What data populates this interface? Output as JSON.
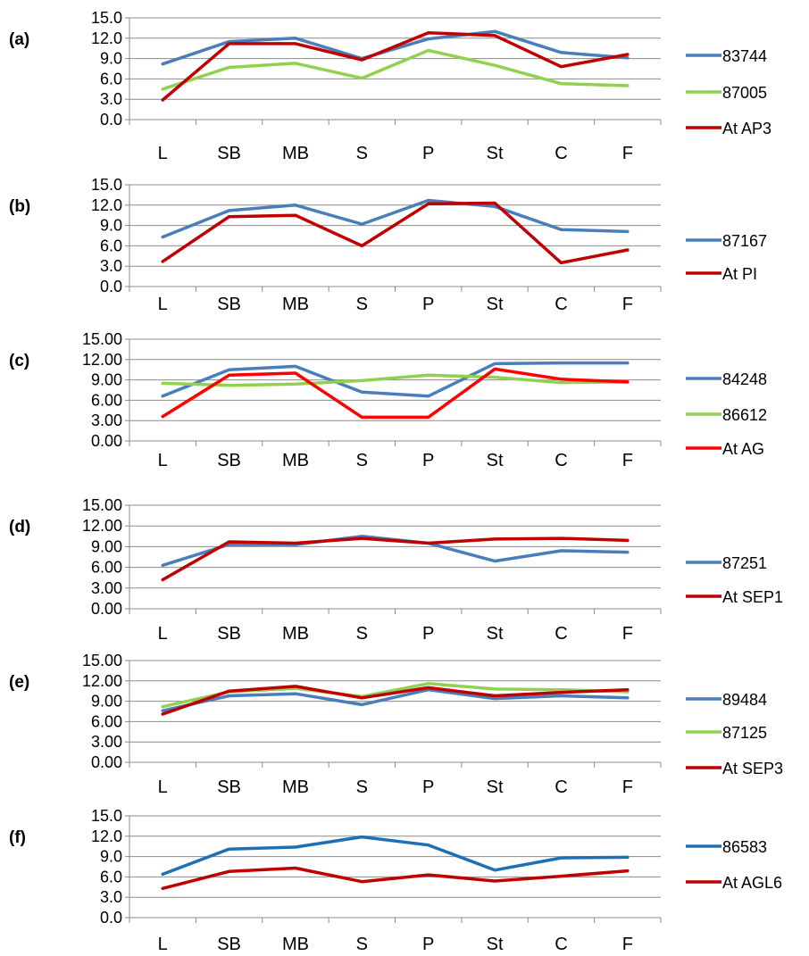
{
  "chart_data": [
    {
      "panel_label": "(a)",
      "type": "line",
      "categories": [
        "L",
        "SB",
        "MB",
        "S",
        "P",
        "St",
        "C",
        "F"
      ],
      "ylim": [
        0,
        15
      ],
      "yticks": [
        "0.0",
        "3.0",
        "6.0",
        "9.0",
        "12.0",
        "15.0"
      ],
      "grid": true,
      "legend_position": "right",
      "series": [
        {
          "name": "83744",
          "color": "#4a7ebb",
          "values": [
            8.2,
            11.5,
            12.0,
            9.0,
            11.9,
            13.0,
            9.9,
            9.1
          ]
        },
        {
          "name": "87005",
          "color": "#92d050",
          "values": [
            4.5,
            7.7,
            8.3,
            6.1,
            10.2,
            8.0,
            5.3,
            5.0
          ]
        },
        {
          "name": "At AP3",
          "color": "#c00000",
          "values": [
            2.9,
            11.2,
            11.2,
            8.8,
            12.8,
            12.4,
            7.8,
            9.6
          ]
        }
      ]
    },
    {
      "panel_label": "(b)",
      "type": "line",
      "categories": [
        "L",
        "SB",
        "MB",
        "S",
        "P",
        "St",
        "C",
        "F"
      ],
      "ylim": [
        0,
        15
      ],
      "yticks": [
        "0.0",
        "3.0",
        "6.0",
        "9.0",
        "12.0",
        "15.0"
      ],
      "grid": true,
      "legend_position": "right",
      "series": [
        {
          "name": "87167",
          "color": "#4a7ebb",
          "values": [
            7.3,
            11.2,
            12.0,
            9.2,
            12.7,
            11.8,
            8.4,
            8.1
          ]
        },
        {
          "name": "At PI",
          "color": "#c00000",
          "values": [
            3.7,
            10.3,
            10.5,
            6.0,
            12.2,
            12.3,
            3.5,
            5.4
          ]
        }
      ]
    },
    {
      "panel_label": "(c)",
      "type": "line",
      "categories": [
        "L",
        "SB",
        "MB",
        "S",
        "P",
        "St",
        "C",
        "F"
      ],
      "ylim": [
        0,
        15
      ],
      "yticks": [
        "0.00",
        "3.00",
        "6.00",
        "9.00",
        "12.00",
        "15.00"
      ],
      "grid": true,
      "legend_position": "right",
      "series": [
        {
          "name": "84248",
          "color": "#4a7ebb",
          "values": [
            6.6,
            10.5,
            11.0,
            7.2,
            6.6,
            11.4,
            11.5,
            11.5
          ]
        },
        {
          "name": "86612",
          "color": "#92d050",
          "values": [
            8.5,
            8.2,
            8.4,
            8.9,
            9.7,
            9.4,
            8.6,
            8.7
          ]
        },
        {
          "name": "At AG",
          "color": "#ff0000",
          "values": [
            3.6,
            9.7,
            10.0,
            3.5,
            3.5,
            10.6,
            9.1,
            8.7
          ]
        }
      ]
    },
    {
      "panel_label": "(d)",
      "type": "line",
      "categories": [
        "L",
        "SB",
        "MB",
        "S",
        "P",
        "St",
        "C",
        "F"
      ],
      "ylim": [
        0,
        15
      ],
      "yticks": [
        "0.00",
        "3.00",
        "6.00",
        "9.00",
        "12.00",
        "15.00"
      ],
      "grid": true,
      "legend_position": "right",
      "series": [
        {
          "name": "87251",
          "color": "#4a7ebb",
          "values": [
            6.3,
            9.3,
            9.3,
            10.5,
            9.5,
            6.9,
            8.4,
            8.2
          ]
        },
        {
          "name": "At SEP1",
          "color": "#c00000",
          "values": [
            4.2,
            9.7,
            9.5,
            10.2,
            9.5,
            10.1,
            10.2,
            9.9
          ]
        }
      ]
    },
    {
      "panel_label": "(e)",
      "type": "line",
      "categories": [
        "L",
        "SB",
        "MB",
        "S",
        "P",
        "St",
        "C",
        "F"
      ],
      "ylim": [
        0,
        15
      ],
      "yticks": [
        "0.00",
        "3.00",
        "6.00",
        "9.00",
        "12.00",
        "15.00"
      ],
      "grid": true,
      "legend_position": "right",
      "series": [
        {
          "name": "89484",
          "color": "#4a7ebb",
          "values": [
            7.6,
            9.8,
            10.1,
            8.5,
            10.7,
            9.4,
            9.8,
            9.5
          ]
        },
        {
          "name": "87125",
          "color": "#92d050",
          "values": [
            8.2,
            10.4,
            10.9,
            9.7,
            11.6,
            10.8,
            10.7,
            10.4
          ]
        },
        {
          "name": "At SEP3",
          "color": "#c00000",
          "values": [
            7.1,
            10.5,
            11.2,
            9.5,
            11.0,
            9.8,
            10.3,
            10.7
          ]
        }
      ]
    },
    {
      "panel_label": "(f)",
      "type": "line",
      "categories": [
        "L",
        "SB",
        "MB",
        "S",
        "P",
        "St",
        "C",
        "F"
      ],
      "ylim": [
        0,
        15
      ],
      "yticks": [
        "0.0",
        "3.0",
        "6.0",
        "9.0",
        "12.0",
        "15.0"
      ],
      "grid": true,
      "legend_position": "right",
      "series": [
        {
          "name": "86583",
          "color": "#1f6fb5",
          "values": [
            6.4,
            10.1,
            10.4,
            11.9,
            10.7,
            7.0,
            8.8,
            8.9
          ]
        },
        {
          "name": "At AGL6",
          "color": "#c00000",
          "values": [
            4.3,
            6.8,
            7.3,
            5.3,
            6.3,
            5.4,
            6.1,
            6.9
          ]
        }
      ]
    }
  ]
}
